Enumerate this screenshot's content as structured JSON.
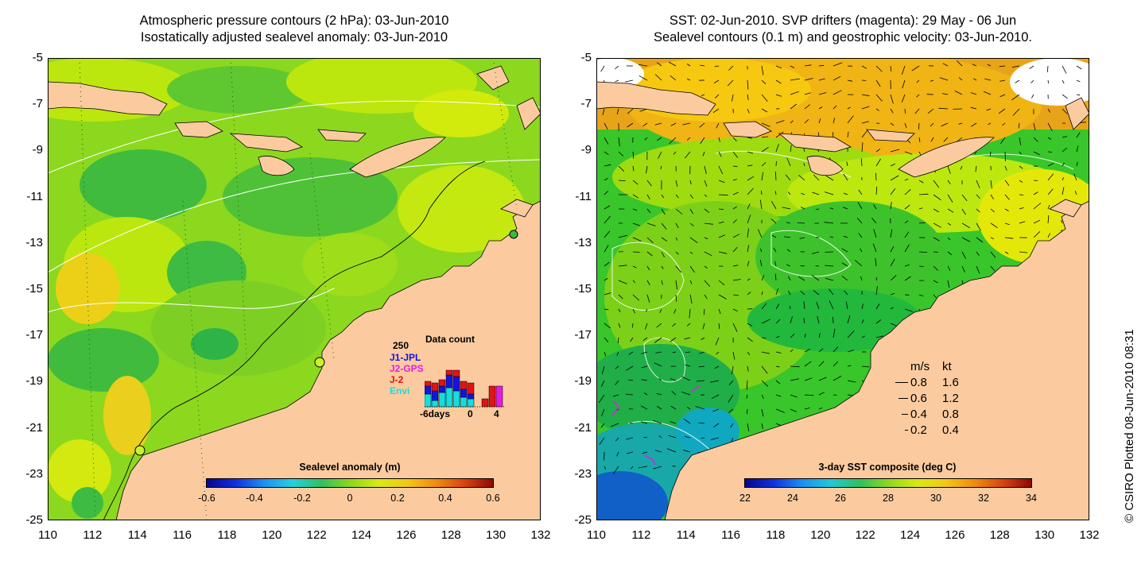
{
  "left_panel": {
    "title_line1": "Atmospheric pressure contours (2 hPa): 03-Jun-2010",
    "title_line2": "Isostatically adjusted sealevel anomaly: 03-Jun-2010",
    "colorbar_label": "Sealevel anomaly (m)",
    "colorbar_ticks": [
      "-0.6",
      "-0.4",
      "-0.2",
      "0",
      "0.2",
      "0.4",
      "0.6"
    ],
    "inset": {
      "title": "Data count",
      "y_label": "250",
      "missions": [
        {
          "name": "J1-JPL",
          "color": "#1414e0"
        },
        {
          "name": "J2-GPS",
          "color": "#e21ce2"
        },
        {
          "name": "J-2",
          "color": "#e01414"
        },
        {
          "name": "Envi",
          "color": "#16dede"
        }
      ],
      "x_label_left": "-6days",
      "x_label_mid": "0",
      "x_label_right": "4"
    }
  },
  "right_panel": {
    "title_line1": "SST: 02-Jun-2010. SVP drifters (magenta): 29 May - 06 Jun",
    "title_line2": "Sealevel contours (0.1 m) and geostrophic velocity: 03-Jun-2010.",
    "colorbar_label": "3-day SST composite (deg C)",
    "colorbar_ticks": [
      "22",
      "24",
      "26",
      "28",
      "30",
      "32",
      "34"
    ],
    "velocity_legend": {
      "header_ms": "m/s",
      "header_kt": "kt",
      "rows": [
        {
          "ms": "0.8",
          "kt": "1.6"
        },
        {
          "ms": "0.6",
          "kt": "1.2"
        },
        {
          "ms": "0.4",
          "kt": "0.8"
        },
        {
          "ms": "0.2",
          "kt": "0.4"
        }
      ]
    }
  },
  "y_ticks": [
    "-5",
    "-7",
    "-9",
    "-11",
    "-13",
    "-15",
    "-17",
    "-19",
    "-21",
    "-23",
    "-25"
  ],
  "x_ticks": [
    "110",
    "112",
    "114",
    "116",
    "118",
    "120",
    "122",
    "124",
    "126",
    "128",
    "130",
    "132"
  ],
  "credit": "© CSIRO Plotted 08-Jun-2010 08:31",
  "colors": {
    "land": "#fbcb9f",
    "ocean_anomaly_base": "#8cd81e",
    "sst_base": "#38c62a"
  }
}
